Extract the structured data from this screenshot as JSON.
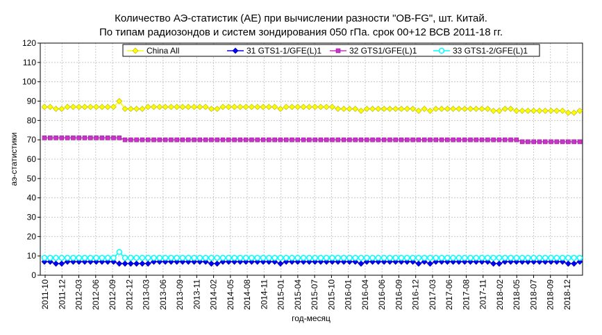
{
  "title_line1": "Количество АЭ-статистик (АЕ) при вычислении разности \"OB-FG\", шт. Китай.",
  "title_line2": "По типам радиозондов и систем зондирования 050 гПа. срок 00+12 ВСВ 2011-18 гг.",
  "chart_data": {
    "type": "line",
    "title": "Количество АЭ-статистик (АЕ) при вычислении разности \"OB-FG\", шт. Китай. По типам радиозондов и систем зондирования 050 гПа. срок 00+12 ВСВ 2011-18 гг.",
    "xlabel": "год-месяц",
    "ylabel": "аэ-статистики",
    "ylim": [
      0,
      120
    ],
    "yticks": [
      0,
      10,
      20,
      30,
      40,
      50,
      60,
      70,
      80,
      90,
      100,
      110,
      120
    ],
    "grid": true,
    "legend_position": "top",
    "x_tick_labels": [
      "2011-10",
      "2011-12",
      "2012-03",
      "2012-06",
      "2012-09",
      "2012-12",
      "2013-03",
      "2013-06",
      "2013-09",
      "2013-11",
      "2014-02",
      "2014-05",
      "2014-08",
      "2014-11",
      "2015-01",
      "2015-04",
      "2015-07",
      "2015-10",
      "2016-01",
      "2016-04",
      "2016-06",
      "2016-09",
      "2016-12",
      "2017-03",
      "2017-06",
      "2017-08",
      "2017-11",
      "2018-02",
      "2018-05",
      "2018-07",
      "2018-09",
      "2018-12"
    ],
    "series": [
      {
        "name": "China All",
        "color": "#ffff00",
        "marker": "diamond",
        "values": [
          87,
          87,
          86,
          86,
          87,
          87,
          87,
          87,
          87,
          87,
          87,
          87,
          87,
          90,
          86,
          86,
          86,
          86,
          87,
          87,
          87,
          87,
          87,
          87,
          87,
          87,
          87,
          87,
          87,
          86,
          86,
          87,
          87,
          87,
          87,
          87,
          87,
          87,
          87,
          87,
          87,
          86,
          87,
          87,
          87,
          87,
          87,
          87,
          87,
          87,
          87,
          86,
          86,
          86,
          86,
          85,
          86,
          86,
          86,
          86,
          86,
          86,
          86,
          86,
          86,
          85,
          86,
          85,
          86,
          86,
          86,
          86,
          86,
          86,
          86,
          86,
          86,
          86,
          85,
          85,
          86,
          86,
          85,
          85,
          85,
          85,
          85,
          85,
          85,
          85,
          85,
          84,
          84,
          85
        ]
      },
      {
        "name": "31 GTS1-1/GFE(L)1",
        "color": "#0000ff",
        "marker": "diamond",
        "values": [
          7,
          7,
          6,
          6,
          7,
          7,
          7,
          7,
          7,
          7,
          7,
          7,
          7,
          6,
          6,
          6,
          6,
          6,
          6,
          7,
          7,
          7,
          7,
          7,
          7,
          7,
          7,
          7,
          7,
          6,
          6,
          7,
          7,
          7,
          7,
          7,
          7,
          7,
          7,
          7,
          7,
          6,
          7,
          7,
          7,
          7,
          7,
          7,
          7,
          7,
          7,
          7,
          7,
          7,
          7,
          6,
          7,
          7,
          7,
          7,
          7,
          7,
          7,
          7,
          7,
          6,
          7,
          6,
          7,
          7,
          7,
          7,
          7,
          7,
          7,
          7,
          7,
          7,
          6,
          6,
          7,
          7,
          7,
          7,
          7,
          7,
          7,
          7,
          7,
          7,
          7,
          6,
          6,
          7
        ]
      },
      {
        "name": "32 GTS1/GFE(L)1",
        "color": "#cc33cc",
        "marker": "square",
        "values": [
          71,
          71,
          71,
          71,
          71,
          71,
          71,
          71,
          71,
          71,
          71,
          71,
          71,
          71,
          70,
          70,
          70,
          70,
          70,
          70,
          70,
          70,
          70,
          70,
          70,
          70,
          70,
          70,
          70,
          70,
          70,
          70,
          70,
          70,
          70,
          70,
          70,
          70,
          70,
          70,
          70,
          70,
          70,
          70,
          70,
          70,
          70,
          70,
          70,
          70,
          70,
          70,
          70,
          70,
          70,
          70,
          70,
          70,
          70,
          70,
          70,
          70,
          70,
          70,
          70,
          70,
          70,
          70,
          70,
          70,
          70,
          70,
          70,
          70,
          70,
          70,
          70,
          70,
          70,
          70,
          70,
          70,
          70,
          69,
          69,
          69,
          69,
          69,
          69,
          69,
          69,
          69,
          69,
          69
        ]
      },
      {
        "name": "33 GTS1-2/GFE(L)1",
        "color": "#00ffff",
        "marker": "circle",
        "values": [
          9,
          9,
          9,
          9,
          9,
          9,
          9,
          9,
          9,
          9,
          9,
          9,
          9,
          12,
          9,
          9,
          9,
          9,
          9,
          9,
          9,
          9,
          9,
          9,
          9,
          9,
          9,
          9,
          9,
          9,
          9,
          9,
          9,
          9,
          9,
          9,
          9,
          9,
          9,
          9,
          9,
          9,
          9,
          9,
          9,
          9,
          9,
          9,
          9,
          9,
          9,
          9,
          9,
          9,
          9,
          9,
          9,
          9,
          9,
          9,
          9,
          9,
          9,
          9,
          9,
          9,
          9,
          9,
          9,
          9,
          9,
          9,
          9,
          9,
          9,
          9,
          9,
          9,
          9,
          9,
          9,
          9,
          9,
          9,
          9,
          9,
          9,
          9,
          9,
          9,
          9,
          9,
          9,
          9
        ]
      }
    ]
  }
}
